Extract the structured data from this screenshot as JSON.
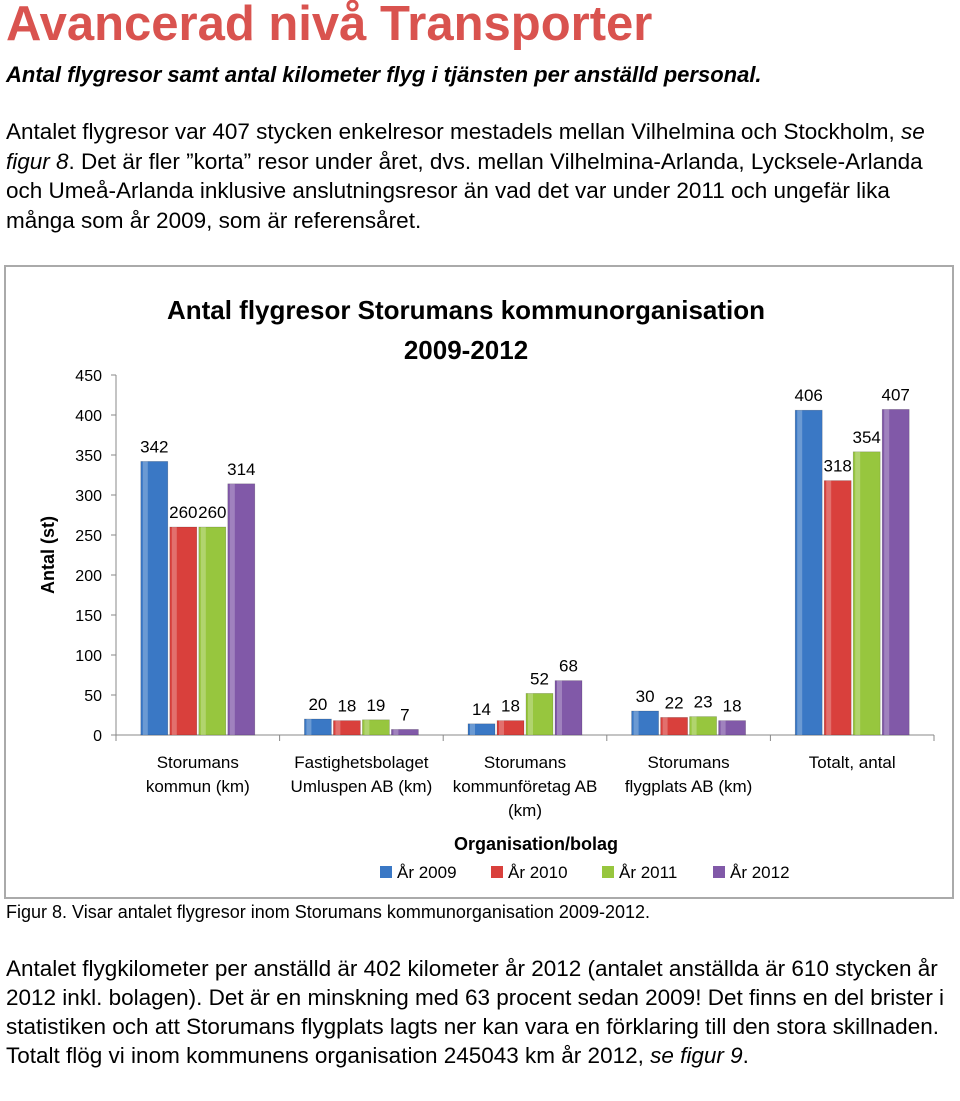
{
  "page": {
    "title": "Avancerad nivå Transporter",
    "subtitle": "Antal flygresor samt antal kilometer flyg i tjänsten per anställd personal.",
    "paragraph1": {
      "before_ref": "Antalet flygresor var 407 stycken enkelresor mestadels mellan Vilhelmina och Stockholm, ",
      "ref": "se figur 8",
      "after_ref": ". Det är fler ”korta” resor under året, dvs. mellan Vilhelmina-Arlanda, Lycksele-Arlanda och Umeå-Arlanda inklusive anslutningsresor än vad det var under 2011 och ungefär lika många som år 2009, som är referensåret."
    },
    "caption": "Figur 8. Visar antalet flygresor inom Storumans kommunorganisation 2009-2012.",
    "paragraph2": {
      "before_ref": "Antalet flygkilometer per anställd är 402 kilometer år 2012 (antalet anställda är 610 stycken år 2012 inkl. bolagen). Det är en minskning med 63 procent sedan 2009! Det finns en del brister i statistiken och att Storumans flygplats lagts ner kan vara en förklaring till den stora skillnaden. Totalt flög vi inom kommunens organisation 245043 km år 2012, ",
      "ref": "se figur 9",
      "after_ref": "."
    }
  },
  "chart_data": {
    "type": "bar",
    "title": [
      "Antal flygresor Storumans kommunorganisation",
      "2009-2012"
    ],
    "ylabel": "Antal (st)",
    "xlabel": "Organisation/bolag",
    "ylim": [
      0,
      450
    ],
    "yticks": [
      0,
      50,
      100,
      150,
      200,
      250,
      300,
      350,
      400,
      450
    ],
    "grid": false,
    "legend_position": "bottom",
    "categories": [
      [
        "Storumans",
        "kommun (km)"
      ],
      [
        "Fastighetsbolaget",
        "Umluspen AB (km)"
      ],
      [
        "Storumans",
        "kommunföretag AB",
        "(km)"
      ],
      [
        "Storumans",
        "flygplats AB (km)"
      ],
      [
        "Totalt, antal"
      ]
    ],
    "series": [
      {
        "name": "År 2009",
        "color": "#3a78c5",
        "values": [
          342,
          20,
          14,
          30,
          406
        ]
      },
      {
        "name": "År 2010",
        "color": "#d9403c",
        "values": [
          260,
          18,
          18,
          22,
          318
        ]
      },
      {
        "name": "År 2011",
        "color": "#97c63e",
        "values": [
          260,
          19,
          52,
          23,
          354
        ]
      },
      {
        "name": "År 2012",
        "color": "#8159a8",
        "values": [
          314,
          7,
          68,
          18,
          407
        ]
      }
    ]
  }
}
